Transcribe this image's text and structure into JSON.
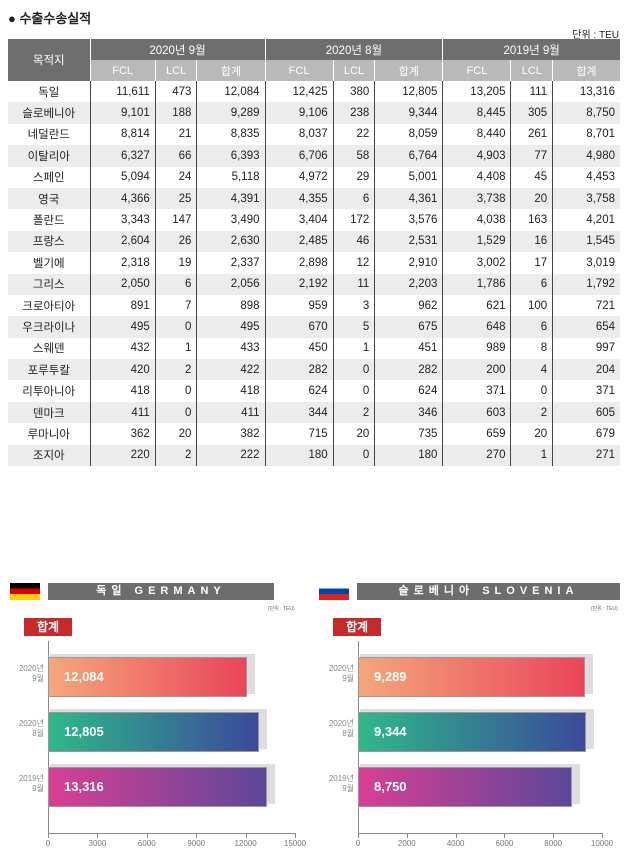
{
  "title": "● 수출수송실적",
  "unit": "단위 : TEU",
  "table": {
    "dest_header": "목적지",
    "periods": [
      "2020년 9월",
      "2020년 8월",
      "2019년 9월"
    ],
    "subheaders": [
      "FCL",
      "LCL",
      "합계"
    ],
    "rows": [
      [
        "독일",
        "11,611",
        "473",
        "12,084",
        "12,425",
        "380",
        "12,805",
        "13,205",
        "111",
        "13,316"
      ],
      [
        "슬로베니아",
        "9,101",
        "188",
        "9,289",
        "9,106",
        "238",
        "9,344",
        "8,445",
        "305",
        "8,750"
      ],
      [
        "네덜란드",
        "8,814",
        "21",
        "8,835",
        "8,037",
        "22",
        "8,059",
        "8,440",
        "261",
        "8,701"
      ],
      [
        "이탈리아",
        "6,327",
        "66",
        "6,393",
        "6,706",
        "58",
        "6,764",
        "4,903",
        "77",
        "4,980"
      ],
      [
        "스페인",
        "5,094",
        "24",
        "5,118",
        "4,972",
        "29",
        "5,001",
        "4,408",
        "45",
        "4,453"
      ],
      [
        "영국",
        "4,366",
        "25",
        "4,391",
        "4,355",
        "6",
        "4,361",
        "3,738",
        "20",
        "3,758"
      ],
      [
        "폴란드",
        "3,343",
        "147",
        "3,490",
        "3,404",
        "172",
        "3,576",
        "4,038",
        "163",
        "4,201"
      ],
      [
        "프랑스",
        "2,604",
        "26",
        "2,630",
        "2,485",
        "46",
        "2,531",
        "1,529",
        "16",
        "1,545"
      ],
      [
        "벨기에",
        "2,318",
        "19",
        "2,337",
        "2,898",
        "12",
        "2,910",
        "3,002",
        "17",
        "3,019"
      ],
      [
        "그리스",
        "2,050",
        "6",
        "2,056",
        "2,192",
        "11",
        "2,203",
        "1,786",
        "6",
        "1,792"
      ],
      [
        "크로아티아",
        "891",
        "7",
        "898",
        "959",
        "3",
        "962",
        "621",
        "100",
        "721"
      ],
      [
        "우크라이나",
        "495",
        "0",
        "495",
        "670",
        "5",
        "675",
        "648",
        "6",
        "654"
      ],
      [
        "스웨덴",
        "432",
        "1",
        "433",
        "450",
        "1",
        "451",
        "989",
        "8",
        "997"
      ],
      [
        "포루투칼",
        "420",
        "2",
        "422",
        "282",
        "0",
        "282",
        "200",
        "4",
        "204"
      ],
      [
        "리투아니아",
        "418",
        "0",
        "418",
        "624",
        "0",
        "624",
        "371",
        "0",
        "371"
      ],
      [
        "덴마크",
        "411",
        "0",
        "411",
        "344",
        "2",
        "346",
        "603",
        "2",
        "605"
      ],
      [
        "루마니아",
        "362",
        "20",
        "382",
        "715",
        "20",
        "735",
        "659",
        "20",
        "679"
      ],
      [
        "조지아",
        "220",
        "2",
        "222",
        "180",
        "0",
        "180",
        "270",
        "1",
        "271"
      ]
    ]
  },
  "chart_data": [
    {
      "type": "bar",
      "orientation": "horizontal",
      "title": "독일 GERMANY",
      "unit": "(단위 : TEU)",
      "badge": "합계",
      "categories": [
        "2020년\n9월",
        "2020년\n8월",
        "2019년\n9월"
      ],
      "values": [
        12084,
        12805,
        13316
      ],
      "labels": [
        "12,084",
        "12,805",
        "13,316"
      ],
      "xlim": [
        0,
        15000
      ],
      "xticks": [
        "0",
        "3000",
        "6000",
        "9000",
        "12000",
        "15000"
      ],
      "flag": [
        "#000000",
        "#dd0000",
        "#ffce00"
      ]
    },
    {
      "type": "bar",
      "orientation": "horizontal",
      "title": "슬로베니아 SLOVENIA",
      "unit": "(단위 : TEU)",
      "badge": "합계",
      "categories": [
        "2020년\n9월",
        "2020년\n8월",
        "2019년\n9월"
      ],
      "values": [
        9289,
        9344,
        8750
      ],
      "labels": [
        "9,289",
        "9,344",
        "8,750"
      ],
      "xlim": [
        0,
        10000
      ],
      "xticks": [
        "0",
        "2000",
        "4000",
        "6000",
        "8000",
        "10000"
      ],
      "flag": [
        "#ffffff",
        "#0044aa",
        "#dd2222"
      ]
    }
  ],
  "bar_gradients": [
    [
      "#f4a77a",
      "#e9455a"
    ],
    [
      "#2eb88a",
      "#3a4a9a"
    ],
    [
      "#d83f94",
      "#5d4799"
    ]
  ]
}
